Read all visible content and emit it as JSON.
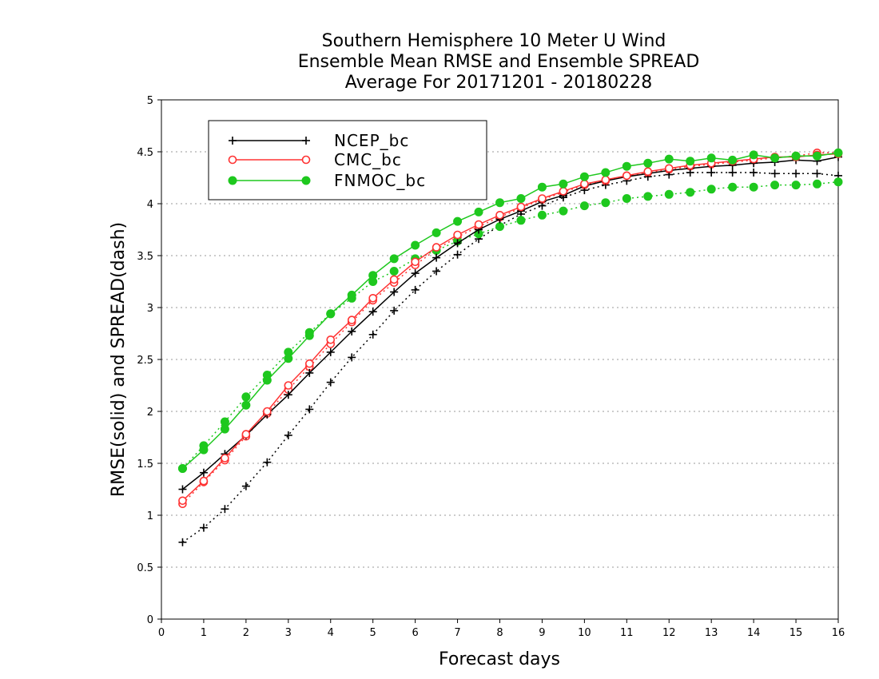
{
  "chart_data": {
    "type": "line",
    "title_lines": [
      "Southern Hemisphere 10 Meter U Wind",
      "Ensemble Mean RMSE and Ensemble SPREAD",
      "Average For 20171201 - 20180228"
    ],
    "xlabel": "Forecast days",
    "ylabel": "RMSE(solid) and SPREAD(dash)",
    "xlim": [
      0,
      16
    ],
    "ylim": [
      0,
      5
    ],
    "xticks": [
      "0",
      "1",
      "2",
      "3",
      "4",
      "5",
      "6",
      "7",
      "8",
      "9",
      "10",
      "11",
      "12",
      "13",
      "14",
      "15",
      "16"
    ],
    "yticks": [
      "0",
      "0.5",
      "1",
      "1.5",
      "2",
      "2.5",
      "3",
      "3.5",
      "4",
      "4.5",
      "5"
    ],
    "grid": "horizontal dotted",
    "legend_position": "top-left",
    "x": [
      0.5,
      1,
      1.5,
      2,
      2.5,
      3,
      3.5,
      4,
      4.5,
      5,
      5.5,
      6,
      6.5,
      7,
      7.5,
      8,
      8.5,
      9,
      9.5,
      10,
      10.5,
      11,
      11.5,
      12,
      12.5,
      13,
      13.5,
      14,
      14.5,
      15,
      15.5,
      16
    ],
    "series": [
      {
        "name": "NCEP_bc",
        "color": "#000000",
        "marker": "plus",
        "rmse": [
          1.25,
          1.41,
          1.59,
          1.77,
          1.97,
          2.16,
          2.37,
          2.57,
          2.77,
          2.96,
          3.15,
          3.33,
          3.48,
          3.62,
          3.75,
          3.85,
          3.93,
          4.02,
          4.08,
          4.17,
          4.22,
          4.26,
          4.29,
          4.32,
          4.34,
          4.36,
          4.37,
          4.39,
          4.4,
          4.42,
          4.41,
          4.45
        ],
        "spread": [
          0.74,
          0.88,
          1.06,
          1.28,
          1.51,
          1.77,
          2.02,
          2.28,
          2.52,
          2.74,
          2.97,
          3.17,
          3.35,
          3.51,
          3.66,
          3.79,
          3.9,
          3.98,
          4.06,
          4.13,
          4.18,
          4.22,
          4.26,
          4.28,
          4.3,
          4.3,
          4.3,
          4.3,
          4.29,
          4.29,
          4.29,
          4.27
        ]
      },
      {
        "name": "CMC_bc",
        "color": "#ff3333",
        "marker": "open-circle",
        "rmse": [
          1.14,
          1.33,
          1.55,
          1.78,
          2.0,
          2.25,
          2.46,
          2.69,
          2.88,
          3.09,
          3.27,
          3.44,
          3.58,
          3.7,
          3.8,
          3.89,
          3.97,
          4.05,
          4.12,
          4.19,
          4.23,
          4.27,
          4.31,
          4.34,
          4.37,
          4.39,
          4.41,
          4.43,
          4.45,
          4.45,
          4.47,
          4.48
        ],
        "spread": [
          1.11,
          1.32,
          1.53,
          1.76,
          1.98,
          2.21,
          2.43,
          2.65,
          2.86,
          3.07,
          3.24,
          3.41,
          3.56,
          3.68,
          3.78,
          3.87,
          3.96,
          4.04,
          4.11,
          4.18,
          4.22,
          4.27,
          4.3,
          4.33,
          4.36,
          4.38,
          4.4,
          4.42,
          4.44,
          4.46,
          4.49,
          4.49
        ]
      },
      {
        "name": "FNMOC_bc",
        "color": "#1ec81e",
        "marker": "filled-circle",
        "rmse": [
          1.45,
          1.63,
          1.83,
          2.06,
          2.3,
          2.51,
          2.73,
          2.94,
          3.12,
          3.31,
          3.47,
          3.6,
          3.72,
          3.83,
          3.92,
          4.01,
          4.05,
          4.16,
          4.19,
          4.26,
          4.3,
          4.36,
          4.39,
          4.43,
          4.41,
          4.44,
          4.42,
          4.47,
          4.44,
          4.46,
          4.46,
          4.49
        ],
        "spread": [
          1.45,
          1.67,
          1.9,
          2.14,
          2.35,
          2.57,
          2.76,
          2.94,
          3.09,
          3.25,
          3.35,
          3.47,
          3.55,
          3.64,
          3.71,
          3.78,
          3.84,
          3.89,
          3.93,
          3.98,
          4.01,
          4.05,
          4.07,
          4.09,
          4.11,
          4.14,
          4.16,
          4.16,
          4.18,
          4.18,
          4.19,
          4.21
        ]
      }
    ]
  }
}
